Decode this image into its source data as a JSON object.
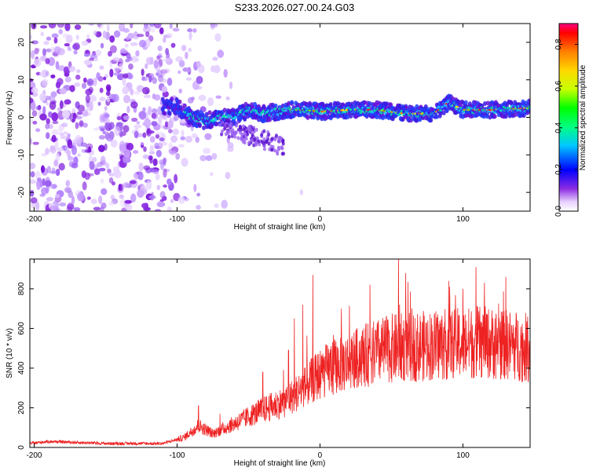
{
  "title": "S233.2026.027.00.24.G03",
  "chart_data": [
    {
      "type": "heatmap",
      "name": "spectrogram",
      "xlabel": "Height of straight line (km)",
      "ylabel": "Frequency (Hz)",
      "xlim": [
        -203,
        147
      ],
      "ylim": [
        -25,
        25
      ],
      "xticks": [
        -200,
        -100,
        0,
        100
      ],
      "yticks": [
        -20,
        -10,
        0,
        10,
        20
      ],
      "colorbar": {
        "label": "Normalized spectral amplitude",
        "range": [
          0.0,
          0.9
        ],
        "ticks": [
          "0.0",
          "0.2",
          "0.4",
          "0.6",
          "0.8"
        ]
      },
      "ridge": {
        "x": [
          -100,
          -90,
          -80,
          -70,
          -60,
          -50,
          -40,
          -30,
          -20,
          -10,
          0,
          20,
          40,
          60,
          80,
          90,
          100,
          120,
          147
        ],
        "y": [
          3,
          0,
          -1,
          0,
          0,
          2,
          1,
          1.5,
          2,
          2,
          1.5,
          2,
          2,
          1,
          1,
          4,
          2,
          2,
          2.5
        ]
      }
    },
    {
      "type": "line",
      "name": "snr",
      "xlabel": "Height of straight line (km)",
      "ylabel": "SNR (10 * v/v)",
      "xlim": [
        -203,
        147
      ],
      "ylim": [
        0,
        950
      ],
      "xticks": [
        -200,
        -100,
        0,
        100
      ],
      "yticks": [
        0,
        200,
        400,
        600,
        800
      ],
      "color": "#ee2222",
      "trend": {
        "x": [
          -203,
          -190,
          -150,
          -110,
          -95,
          -85,
          -75,
          -60,
          -40,
          -25,
          -15,
          -5,
          0,
          10,
          20,
          30,
          50,
          70,
          90,
          110,
          130,
          147
        ],
        "y": [
          20,
          30,
          20,
          20,
          50,
          110,
          70,
          120,
          190,
          230,
          280,
          340,
          370,
          410,
          430,
          460,
          500,
          510,
          520,
          530,
          520,
          500
        ]
      },
      "spikes": {
        "x": [
          -85,
          -70,
          -40,
          -22,
          -18,
          -12,
          -5,
          15,
          35,
          55,
          60,
          90,
          100,
          115,
          130
        ],
        "y": [
          210,
          170,
          380,
          490,
          650,
          720,
          870,
          700,
          820,
          950,
          880,
          840,
          800,
          830,
          860
        ]
      }
    }
  ]
}
